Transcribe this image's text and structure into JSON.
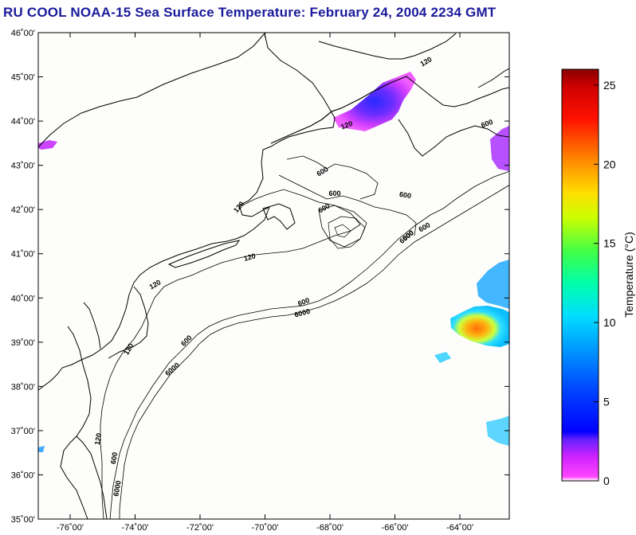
{
  "title": "RU COOL  NOAA-15  Sea Surface Temperature:  February 24, 2004 2234 GMT",
  "map": {
    "lat_labels": [
      "46˚00'",
      "45˚00'",
      "44˚00'",
      "43˚00'",
      "42˚00'",
      "41˚00'",
      "40˚00'",
      "39˚00'",
      "38˚00'",
      "37˚00'",
      "36˚00'",
      "35˚00'"
    ],
    "lon_labels": [
      "-76˚00'",
      "-74˚00'",
      "-72˚00'",
      "-70˚00'",
      "-68˚00'",
      "-66˚00'",
      "-64˚00'"
    ],
    "contour_labels": [
      {
        "text": "120",
        "depth": 120
      },
      {
        "text": "120",
        "depth": 120
      },
      {
        "text": "120",
        "depth": 120
      },
      {
        "text": "120",
        "depth": 120
      },
      {
        "text": "120",
        "depth": 120
      },
      {
        "text": "120",
        "depth": 120
      },
      {
        "text": "120",
        "depth": 120
      },
      {
        "text": "600",
        "depth": 600
      },
      {
        "text": "600",
        "depth": 600
      },
      {
        "text": "600",
        "depth": 600
      },
      {
        "text": "600",
        "depth": 600
      },
      {
        "text": "600",
        "depth": 600
      },
      {
        "text": "600",
        "depth": 600
      },
      {
        "text": "600",
        "depth": 600
      },
      {
        "text": "600",
        "depth": 600
      },
      {
        "text": "600",
        "depth": 600
      },
      {
        "text": "600",
        "depth": 600
      },
      {
        "text": "6000",
        "depth": 6000
      },
      {
        "text": "6000",
        "depth": 6000
      },
      {
        "text": "6000",
        "depth": 6000
      },
      {
        "text": "6000",
        "depth": 6000
      }
    ]
  },
  "colorbar": {
    "title": "Temperature (°C)",
    "ticks": [
      "25",
      "20",
      "15",
      "10",
      "5",
      "0"
    ],
    "min": 0,
    "max": 26,
    "colors": [
      "#ff66ff",
      "#cc33ff",
      "#6633ff",
      "#0000ff",
      "#0033ff",
      "#0099ff",
      "#00ccff",
      "#00ffcc",
      "#33ff66",
      "#99ff33",
      "#ffff00",
      "#ffaa00",
      "#ff5500",
      "#ff0000",
      "#cc0000",
      "#880000"
    ]
  }
}
